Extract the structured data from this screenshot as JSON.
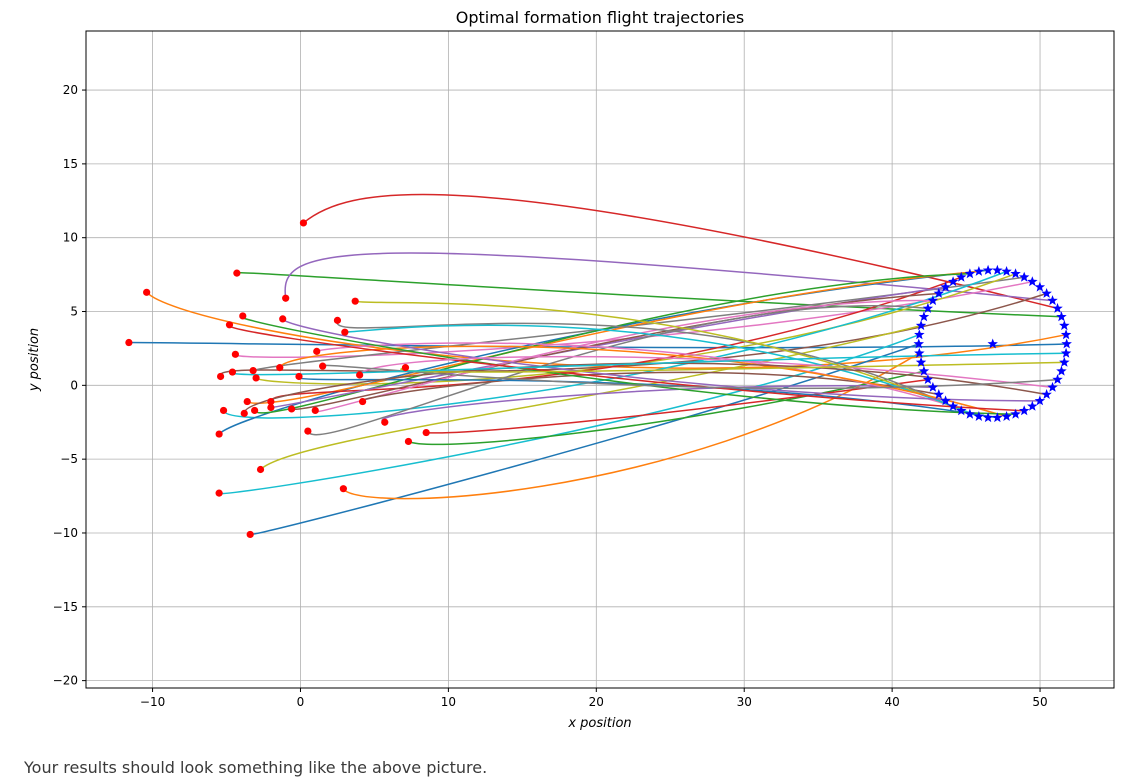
{
  "chart_data": {
    "type": "line",
    "title": "Optimal formation flight trajectories",
    "xlabel": "x position",
    "ylabel": "y position",
    "xlim": [
      -14.5,
      55
    ],
    "ylim": [
      -20.5,
      24
    ],
    "xticks": [
      -10,
      0,
      10,
      20,
      30,
      40,
      50
    ],
    "yticks": [
      -20,
      -15,
      -10,
      -5,
      0,
      5,
      10,
      15,
      20
    ],
    "grid": true,
    "formation": {
      "center": [
        46.8,
        2.8
      ],
      "radius": 5.0,
      "count": 50,
      "marker": "star",
      "color": "#0000ff"
    },
    "palette": [
      "#1f77b4",
      "#ff7f0e",
      "#2ca02c",
      "#d62728",
      "#9467bd",
      "#8c564b",
      "#e377c2",
      "#7f7f7f",
      "#bcbd22",
      "#17becf"
    ],
    "start_marker_color": "#ff0000",
    "starts": [
      [
        -11.6,
        2.9
      ],
      [
        -10.4,
        6.3
      ],
      [
        -4.3,
        7.6
      ],
      [
        0.2,
        11.0
      ],
      [
        -1.0,
        5.9
      ],
      [
        -5.4,
        0.6
      ],
      [
        -4.4,
        2.1
      ],
      [
        -3.2,
        1.0
      ],
      [
        -3.0,
        0.5
      ],
      [
        -5.2,
        -1.7
      ],
      [
        -5.5,
        -3.3
      ],
      [
        -3.6,
        -1.1
      ],
      [
        -3.1,
        -1.7
      ],
      [
        -2.0,
        -1.1
      ],
      [
        -2.0,
        -1.5
      ],
      [
        -0.6,
        -1.6
      ],
      [
        1.0,
        -1.7
      ],
      [
        0.5,
        -3.1
      ],
      [
        -2.7,
        -5.7
      ],
      [
        -5.5,
        -7.3
      ],
      [
        -3.4,
        -10.1
      ],
      [
        2.9,
        -7.0
      ],
      [
        7.3,
        -3.8
      ],
      [
        8.5,
        -3.2
      ],
      [
        5.7,
        -2.5
      ],
      [
        4.2,
        -1.1
      ],
      [
        1.1,
        2.3
      ],
      [
        2.5,
        4.4
      ],
      [
        3.7,
        5.7
      ],
      [
        3.0,
        3.6
      ],
      [
        -0.1,
        0.6
      ],
      [
        -1.4,
        1.2
      ],
      [
        -3.9,
        4.7
      ],
      [
        -4.8,
        4.1
      ],
      [
        -1.2,
        4.5
      ],
      [
        -3.8,
        -1.9
      ],
      [
        4.0,
        0.7
      ],
      [
        1.5,
        1.3
      ],
      [
        7.1,
        1.2
      ],
      [
        -4.6,
        0.9
      ]
    ],
    "ctrl_out": [
      [
        -6,
        2.9
      ],
      [
        -8,
        3.7
      ],
      [
        -5.8,
        7.9
      ],
      [
        3,
        13.3
      ],
      [
        -1.5,
        9.5
      ],
      [
        -6.5,
        2.3
      ],
      [
        -5.4,
        1.5
      ],
      [
        -1.7,
        1.6
      ],
      [
        -2.4,
        -0.2
      ],
      [
        -5,
        -3.4
      ],
      [
        -4.3,
        -1.9
      ],
      [
        -1.7,
        -2.3
      ],
      [
        -2.8,
        -3.3
      ],
      [
        -2.2,
        0.4
      ],
      [
        -0.5,
        -1.4
      ],
      [
        0.5,
        -2.1
      ],
      [
        -0.5,
        -2.8
      ],
      [
        1,
        -5.2
      ],
      [
        -0.5,
        -3.5
      ],
      [
        -6.3,
        -7.8
      ],
      [
        -2.9,
        -10.2
      ],
      [
        3.7,
        -8.6
      ],
      [
        9,
        -4.6
      ],
      [
        11,
        -3.4
      ],
      [
        3.3,
        -1.8
      ],
      [
        1.7,
        -1.1
      ],
      [
        1.6,
        2.7
      ],
      [
        1.4,
        2.3
      ],
      [
        4.5,
        5.3
      ],
      [
        4.2,
        3.6
      ],
      [
        -2.1,
        -0.1
      ],
      [
        -1.1,
        2.7
      ],
      [
        -6.5,
        4.6
      ],
      [
        -6.4,
        3.6
      ],
      [
        -1.3,
        3.7
      ],
      [
        -4.1,
        -0.1
      ],
      [
        4.1,
        2
      ],
      [
        0.7,
        1.8
      ],
      [
        4,
        0.6
      ],
      [
        -6.1,
        0.2
      ]
    ],
    "ctrl_in": [
      [
        30,
        2.2
      ],
      [
        25,
        -2
      ],
      [
        20,
        6
      ],
      [
        10,
        15.5
      ],
      [
        2,
        10.5
      ],
      [
        25,
        -2
      ],
      [
        25,
        2
      ],
      [
        25,
        4
      ],
      [
        25,
        -1
      ],
      [
        25,
        -1
      ],
      [
        20,
        5
      ],
      [
        25,
        6
      ],
      [
        25,
        7
      ],
      [
        20,
        -2
      ],
      [
        25,
        4
      ],
      [
        25,
        5
      ],
      [
        25,
        6
      ],
      [
        25,
        7
      ],
      [
        22,
        -1
      ],
      [
        25,
        -3
      ],
      [
        25,
        -3
      ],
      [
        25,
        -8
      ],
      [
        25,
        -3
      ],
      [
        25,
        -2
      ],
      [
        25,
        0.5
      ],
      [
        25,
        3
      ],
      [
        25,
        4.5
      ],
      [
        25,
        8
      ],
      [
        25,
        7
      ],
      [
        25,
        6.5
      ],
      [
        25,
        1.5
      ],
      [
        25,
        4.6
      ],
      [
        25,
        -1.5
      ],
      [
        25,
        -0.5
      ],
      [
        25,
        -1
      ],
      [
        25,
        4
      ],
      [
        25,
        3
      ],
      [
        25,
        -1.5
      ],
      [
        25,
        1
      ],
      [
        25,
        1.8
      ]
    ],
    "caption": "Your results should look something like the above picture."
  }
}
